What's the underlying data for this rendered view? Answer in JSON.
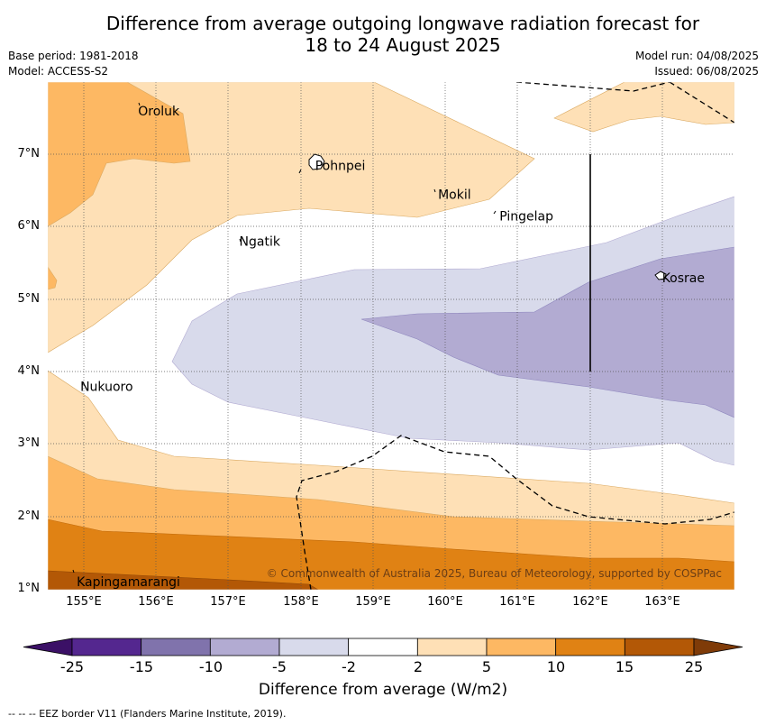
{
  "title": {
    "line1": "Difference from average outgoing longwave radiation forecast for",
    "line2": "18 to 24 August 2025"
  },
  "meta": {
    "base_period": "Base period: 1981-2018",
    "model": "Model: ACCESS-S2",
    "model_run": "Model run: 04/08/2025",
    "issued": "Issued: 06/08/2025"
  },
  "axes": {
    "x_ticks": [
      "155°E",
      "156°E",
      "157°E",
      "158°E",
      "159°E",
      "160°E",
      "161°E",
      "162°E",
      "163°E"
    ],
    "y_ticks": [
      "7°N",
      "6°N",
      "5°N",
      "4°N",
      "3°N",
      "2°N",
      "1°N"
    ],
    "lon_range": [
      154.5,
      164
    ],
    "lat_range": [
      1,
      8
    ]
  },
  "places": [
    {
      "name": "Oroluk",
      "lon": 155.75,
      "lat": 7.6
    },
    {
      "name": "Pohnpei",
      "lon": 158.2,
      "lat": 6.85
    },
    {
      "name": "Mokil",
      "lon": 159.9,
      "lat": 6.45
    },
    {
      "name": "Pingelap",
      "lon": 160.75,
      "lat": 6.15
    },
    {
      "name": "Ngatik",
      "lon": 157.15,
      "lat": 5.8
    },
    {
      "name": "Kosrae",
      "lon": 163.0,
      "lat": 5.3
    },
    {
      "name": "Nukuoro",
      "lon": 154.95,
      "lat": 3.8
    },
    {
      "name": "Kapingamarangi",
      "lon": 154.9,
      "lat": 1.1
    }
  ],
  "copyright": "© Commonwealth of Australia 2025, Bureau of Meteorology, supported by COSPPac",
  "colorbar": {
    "labels": [
      "-25",
      "-15",
      "-10",
      "-5",
      "-2",
      "2",
      "5",
      "10",
      "15",
      "25"
    ],
    "colors": [
      "#3b1066",
      "#54278f",
      "#8073ac",
      "#b2abd2",
      "#d8daeb",
      "#ffffff",
      "#fee0b6",
      "#fdb863",
      "#e08214",
      "#b35806",
      "#7f3b08"
    ],
    "title": "Difference from average (W/m2)"
  },
  "footer": "--  --  -- EEZ border V11 (Flanders Marine Institute, 2019)."
}
